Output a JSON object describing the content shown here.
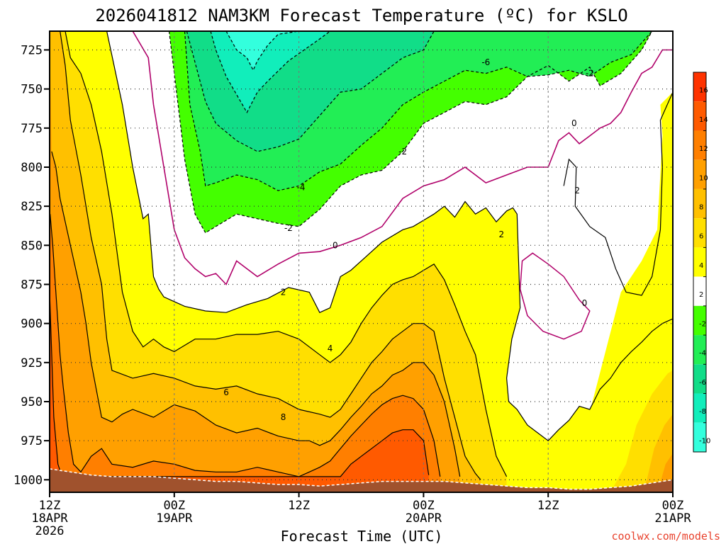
{
  "chart_data": {
    "type": "heatmap",
    "title": "2026041812 NAM3KM Forecast Temperature (ºC) for KSLO",
    "xlabel": "Forecast Time (UTC)",
    "ylabel": "",
    "x_ticks": [
      {
        "hour": 0,
        "line1": "12Z",
        "line2": "18APR",
        "line3": "2026"
      },
      {
        "hour": 12,
        "line1": "00Z",
        "line2": "19APR",
        "line3": ""
      },
      {
        "hour": 24,
        "line1": "12Z",
        "line2": "",
        "line3": ""
      },
      {
        "hour": 36,
        "line1": "00Z",
        "line2": "20APR",
        "line3": ""
      },
      {
        "hour": 48,
        "line1": "12Z",
        "line2": "",
        "line3": ""
      },
      {
        "hour": 60,
        "line1": "00Z",
        "line2": "21APR",
        "line3": ""
      }
    ],
    "xlim": [
      0,
      60
    ],
    "y_ticks": [
      "725",
      "750",
      "775",
      "800",
      "825",
      "850",
      "875",
      "900",
      "925",
      "950",
      "975",
      "1000"
    ],
    "ylim": [
      713,
      1008
    ],
    "y_scale": "pressure (inverted)",
    "grid": true,
    "colorbar": {
      "ticks": [
        "16",
        "14",
        "12",
        "10",
        "8",
        "6",
        "4",
        "2",
        "-2",
        "-4",
        "-6",
        "-8",
        "-10"
      ],
      "colors": [
        "#ff3300",
        "#ff5a00",
        "#ff7f00",
        "#ffa000",
        "#ffc000",
        "#ffdf00",
        "#ffff00",
        "#ffffff",
        "#44ff00",
        "#22ee55",
        "#11dd88",
        "#11eebb",
        "#33ffdd"
      ],
      "placement": "right"
    },
    "contour_labels": [
      {
        "hour": 42.0,
        "p": 733,
        "text": "-6"
      },
      {
        "hour": 52.0,
        "p": 740,
        "text": "-2"
      },
      {
        "hour": 50.5,
        "p": 772,
        "text": "0"
      },
      {
        "hour": 34.0,
        "p": 790,
        "text": "-2"
      },
      {
        "hour": 24.2,
        "p": 813,
        "text": "-4"
      },
      {
        "hour": 23.0,
        "p": 839,
        "text": "-2"
      },
      {
        "hour": 27.5,
        "p": 850,
        "text": "0"
      },
      {
        "hour": 43.5,
        "p": 843,
        "text": "2"
      },
      {
        "hour": 50.8,
        "p": 815,
        "text": "2"
      },
      {
        "hour": 22.5,
        "p": 880,
        "text": "2"
      },
      {
        "hour": 51.5,
        "p": 887,
        "text": "0"
      },
      {
        "hour": 27.0,
        "p": 916,
        "text": "4"
      },
      {
        "hour": 17.0,
        "p": 944,
        "text": "6"
      },
      {
        "hour": 22.5,
        "p": 960,
        "text": "8"
      }
    ],
    "contours": [
      {
        "level": -10,
        "hour": [
          17,
          18,
          19,
          19.6,
          20,
          21,
          22,
          24
        ],
        "p": [
          713,
          725,
          730,
          738,
          732,
          722,
          715,
          713
        ]
      },
      {
        "level": -8,
        "hour": [
          15.5,
          16,
          17,
          19,
          20,
          21,
          23,
          26,
          27,
          28
        ],
        "p": [
          713,
          725,
          742,
          765,
          752,
          745,
          732,
          718,
          713,
          713
        ]
      },
      {
        "hour": [
          13.2,
          14,
          15,
          16,
          18,
          20,
          22,
          24,
          26,
          28,
          30,
          32,
          34,
          36,
          37
        ],
        "p": [
          713,
          733,
          758,
          772,
          783,
          790,
          787,
          782,
          767,
          752,
          750,
          740,
          730,
          725,
          713
        ],
        "level": -6
      },
      {
        "level": -4,
        "hour": [
          13,
          13.5,
          14.5,
          15,
          16,
          18,
          20,
          22,
          24,
          26,
          28,
          30,
          32,
          34,
          36,
          38,
          40,
          42,
          44,
          46,
          48,
          50,
          52,
          54,
          56,
          58
        ],
        "p": [
          713,
          760,
          790,
          812,
          810,
          805,
          808,
          815,
          812,
          803,
          798,
          786,
          775,
          760,
          752,
          745,
          738,
          740,
          736,
          742,
          741,
          738,
          742,
          733,
          728,
          713
        ]
      },
      {
        "level": -2,
        "hour": [
          11.5,
          12,
          13,
          14,
          15,
          16,
          18,
          20,
          22,
          24,
          26,
          28,
          30,
          32,
          34,
          36,
          38,
          40,
          42,
          44,
          46,
          48,
          50,
          52,
          53,
          55,
          57,
          58
        ],
        "p": [
          713,
          740,
          795,
          830,
          842,
          838,
          830,
          833,
          836,
          838,
          827,
          812,
          805,
          802,
          790,
          772,
          765,
          758,
          760,
          755,
          742,
          735,
          745,
          736,
          748,
          740,
          725,
          713
        ]
      },
      {
        "level": 0,
        "hour": [
          8,
          9.5,
          10,
          11,
          12,
          13,
          14,
          15,
          16,
          17,
          18,
          20,
          22,
          24,
          26,
          28,
          30,
          32,
          34,
          36,
          38,
          40,
          42,
          44,
          46,
          48,
          49,
          50,
          51,
          52,
          53,
          54,
          55,
          56,
          57,
          58,
          59,
          60
        ],
        "p": [
          713,
          730,
          760,
          800,
          840,
          858,
          865,
          870,
          868,
          875,
          860,
          870,
          862,
          855,
          854,
          850,
          845,
          838,
          820,
          812,
          808,
          800,
          810,
          805,
          800,
          800,
          783,
          778,
          785,
          780,
          775,
          772,
          765,
          752,
          740,
          736,
          725,
          725
        ]
      },
      {
        "level": 2,
        "hour": [
          5.5,
          7,
          8,
          9,
          9.5,
          10,
          10.5,
          11,
          12,
          13,
          15,
          17,
          19,
          21,
          23,
          25,
          26,
          27,
          28,
          29,
          30,
          32,
          34,
          35,
          36,
          37,
          38,
          39,
          40,
          41,
          42,
          43,
          44,
          44.6,
          45,
          45.3,
          44.5,
          44,
          44.2,
          45,
          46,
          47,
          48,
          49,
          50,
          51,
          52,
          53,
          54,
          55,
          56,
          57,
          58,
          59,
          60
        ],
        "p": [
          713,
          760,
          800,
          833,
          830,
          870,
          878,
          883,
          886,
          889,
          892,
          893,
          888,
          884,
          877,
          880,
          893,
          890,
          870,
          866,
          860,
          848,
          840,
          838,
          834,
          830,
          825,
          832,
          822,
          830,
          826,
          835,
          828,
          826,
          830,
          890,
          910,
          935,
          950,
          955,
          965,
          970,
          975,
          968,
          962,
          953,
          955,
          942,
          935,
          925,
          918,
          912,
          905,
          900,
          897
        ]
      },
      {
        "level": 4,
        "hour": [
          1.5,
          2,
          3,
          4,
          5,
          6,
          7,
          8,
          9,
          10,
          11,
          12,
          14,
          16,
          18,
          20,
          22,
          24,
          26,
          27,
          28,
          29,
          30,
          31,
          32,
          33,
          34,
          35,
          36,
          37,
          38,
          39,
          40,
          41,
          42,
          43,
          44
        ],
        "p": [
          713,
          730,
          740,
          760,
          790,
          830,
          880,
          905,
          915,
          910,
          915,
          918,
          910,
          910,
          907,
          907,
          905,
          910,
          920,
          925,
          920,
          912,
          900,
          890,
          882,
          875,
          872,
          870,
          866,
          862,
          872,
          888,
          905,
          920,
          955,
          985,
          998
        ]
      },
      {
        "level": 6,
        "hour": [
          1,
          1.5,
          2,
          3,
          4,
          5,
          5.5,
          6,
          8,
          10,
          12,
          14,
          16,
          18,
          20,
          22,
          24,
          26,
          27,
          28,
          29,
          30,
          31,
          32,
          33,
          34,
          35,
          36,
          37,
          37.5,
          38,
          39,
          40,
          41,
          41.5
        ],
        "p": [
          713,
          735,
          770,
          805,
          845,
          875,
          910,
          930,
          935,
          932,
          935,
          940,
          942,
          940,
          945,
          948,
          955,
          958,
          960,
          955,
          945,
          935,
          925,
          918,
          910,
          905,
          900,
          900,
          905,
          920,
          935,
          960,
          985,
          996,
          1000
        ]
      },
      {
        "level": 8,
        "hour": [
          0.2,
          0.6,
          1,
          2,
          3,
          3.5,
          4,
          5,
          6,
          7,
          8,
          10,
          12,
          14,
          16,
          18,
          20,
          22,
          24,
          25,
          26,
          27,
          28,
          29,
          30,
          31,
          32,
          33,
          34,
          35,
          36,
          37,
          38,
          39,
          39.5
        ],
        "p": [
          790,
          800,
          820,
          850,
          880,
          900,
          925,
          960,
          963,
          958,
          955,
          960,
          952,
          956,
          965,
          970,
          967,
          972,
          975,
          975,
          978,
          975,
          968,
          960,
          953,
          945,
          940,
          933,
          930,
          925,
          925,
          933,
          950,
          980,
          998
        ]
      },
      {
        "level": 10,
        "hour": [
          0.05,
          0.3,
          0.6,
          1,
          1.3,
          1.8,
          2.3,
          3,
          4,
          5,
          6,
          8,
          10,
          12,
          14,
          16,
          18,
          20,
          22,
          24,
          25,
          26,
          27,
          28,
          29,
          30,
          31,
          32,
          33,
          34,
          35,
          36,
          37,
          37.6
        ],
        "p": [
          830,
          850,
          880,
          920,
          940,
          970,
          990,
          995,
          985,
          980,
          990,
          992,
          988,
          990,
          994,
          995,
          995,
          992,
          995,
          998,
          995,
          992,
          988,
          980,
          972,
          965,
          958,
          952,
          948,
          946,
          948,
          955,
          975,
          998
        ]
      },
      {
        "level": 12,
        "hour": [
          0,
          0.4,
          0.8,
          1.2,
          28,
          29,
          30,
          31,
          32,
          33,
          34,
          35,
          36,
          36.5
        ],
        "p": [
          880,
          960,
          990,
          998,
          998,
          990,
          985,
          980,
          975,
          970,
          968,
          968,
          975,
          997
        ]
      }
    ],
    "surface": {
      "hour": [
        0,
        2,
        4,
        6,
        8,
        10,
        12,
        14,
        16,
        18,
        20,
        22,
        24,
        26,
        28,
        30,
        32,
        34,
        36,
        38,
        40,
        42,
        44,
        46,
        48,
        50,
        52,
        54,
        56,
        58,
        60
      ],
      "p": [
        993,
        995,
        997,
        998,
        998,
        998,
        999,
        1000,
        1001,
        1001,
        1002,
        1003,
        1003,
        1004,
        1003,
        1002,
        1001,
        1001,
        1001,
        1001,
        1002,
        1003,
        1004,
        1005,
        1005,
        1006,
        1006,
        1005,
        1004,
        1002,
        1000
      ]
    }
  },
  "credit": "coolwx.com/models"
}
